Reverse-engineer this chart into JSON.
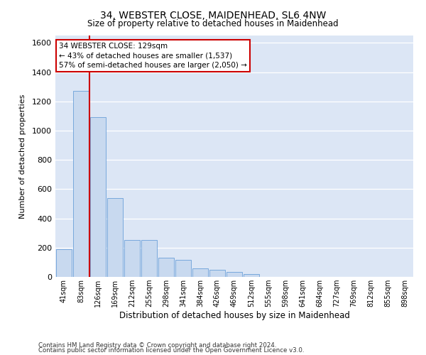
{
  "title1": "34, WEBSTER CLOSE, MAIDENHEAD, SL6 4NW",
  "title2": "Size of property relative to detached houses in Maidenhead",
  "xlabel": "Distribution of detached houses by size in Maidenhead",
  "ylabel": "Number of detached properties",
  "footer1": "Contains HM Land Registry data © Crown copyright and database right 2024.",
  "footer2": "Contains public sector information licensed under the Open Government Licence v3.0.",
  "annotation_title": "34 WEBSTER CLOSE: 129sqm",
  "annotation_line1": "← 43% of detached houses are smaller (1,537)",
  "annotation_line2": "57% of semi-detached houses are larger (2,050) →",
  "bar_color": "#c8d9ef",
  "bar_edge_color": "#6a9fd8",
  "ref_line_color": "#cc0000",
  "background_color": "#dce6f5",
  "cat_labels": [
    "41sqm",
    "83sqm",
    "126sqm",
    "169sqm",
    "212sqm",
    "255sqm",
    "298sqm",
    "341sqm",
    "384sqm",
    "426sqm",
    "469sqm",
    "512sqm",
    "555sqm",
    "598sqm",
    "641sqm",
    "684sqm",
    "727sqm",
    "769sqm",
    "812sqm",
    "855sqm",
    "898sqm"
  ],
  "values": [
    190,
    1270,
    1090,
    540,
    250,
    250,
    130,
    115,
    60,
    50,
    35,
    20,
    0,
    0,
    0,
    0,
    0,
    0,
    0,
    0,
    0
  ],
  "ylim": [
    0,
    1650
  ],
  "yticks": [
    0,
    200,
    400,
    600,
    800,
    1000,
    1200,
    1400,
    1600
  ],
  "ref_bar_index": 1.5
}
